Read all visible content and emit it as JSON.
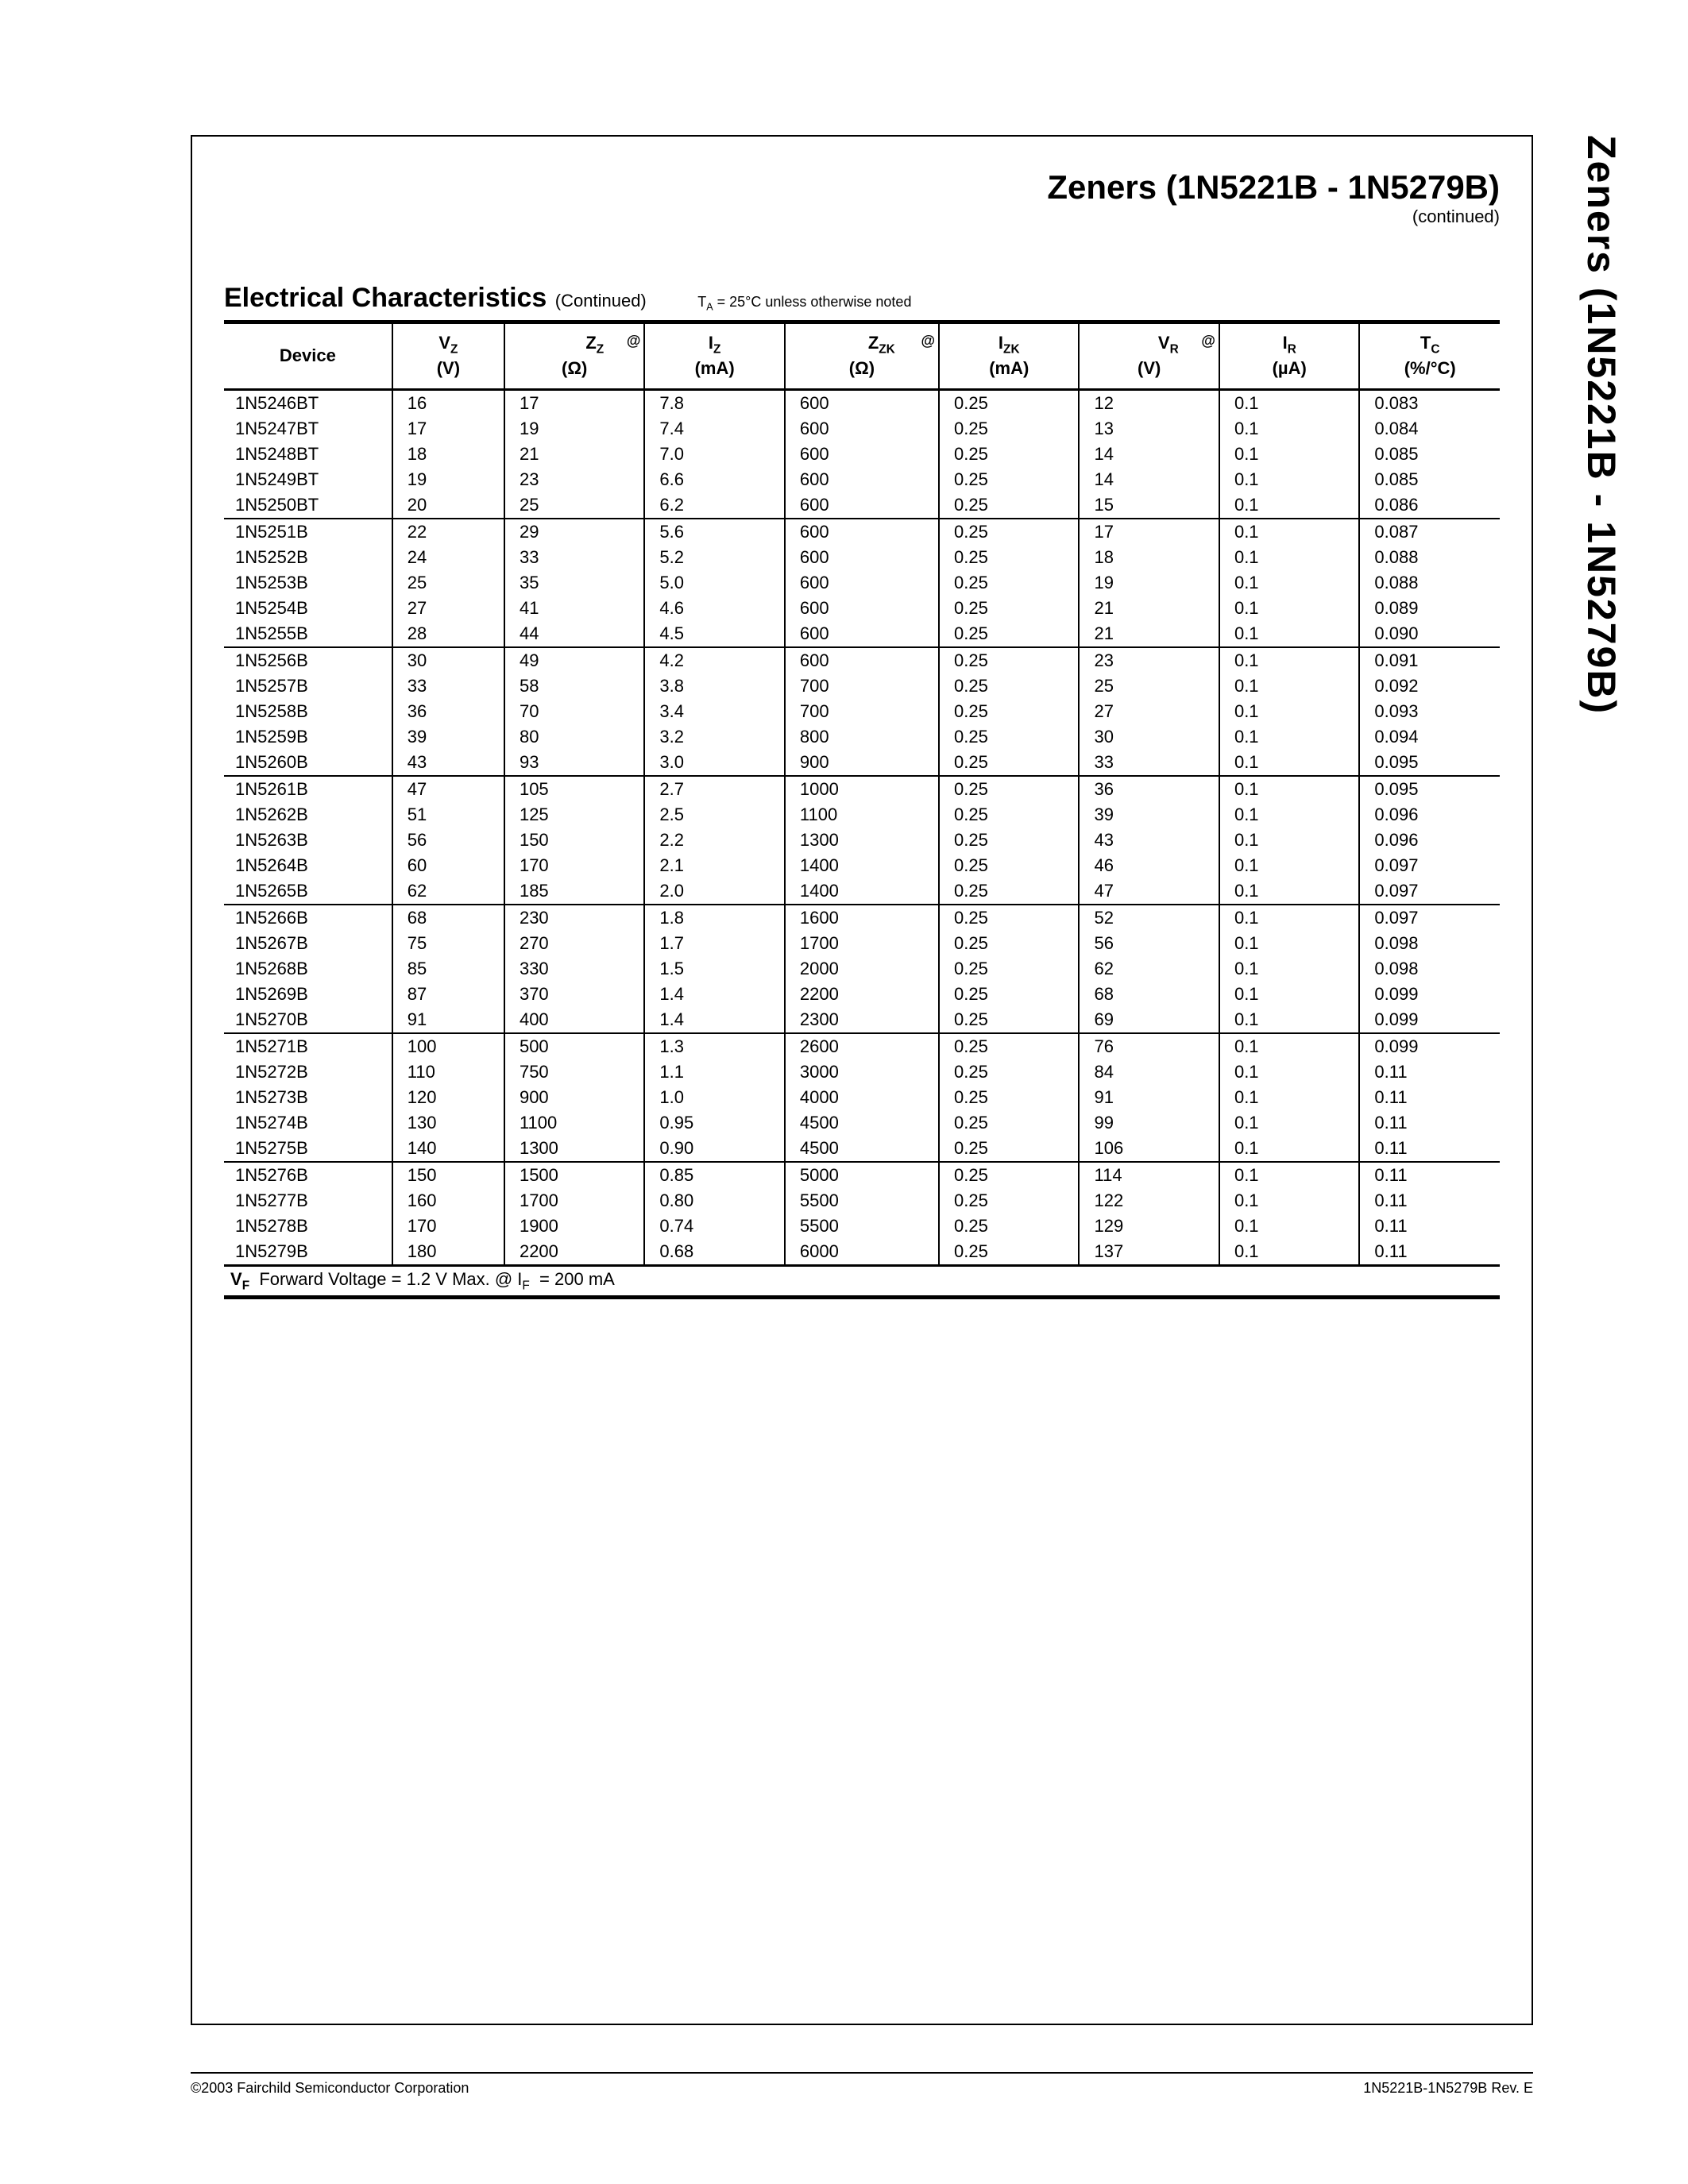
{
  "sideTitle": "Zeners (1N5221B - 1N5279B)",
  "header": {
    "title": "Zeners (1N5221B - 1N5279B)",
    "continued": "(continued)"
  },
  "section": {
    "title": "Electrical Characteristics",
    "continued": "(Continued)",
    "condition": "Tᴀ = 25°C unless otherwise noted"
  },
  "columns": [
    {
      "l1": "Device",
      "l2": ""
    },
    {
      "l1": "V_Z",
      "l2": "(V)"
    },
    {
      "l1": "Z_Z",
      "l2": "(Ω)",
      "at": true
    },
    {
      "l1": "I_Z",
      "l2": "(mA)"
    },
    {
      "l1": "Z_ZK",
      "l2": "(Ω)",
      "at": true
    },
    {
      "l1": "I_ZK",
      "l2": "(mA)"
    },
    {
      "l1": "V_R",
      "l2": "(V)",
      "at": true
    },
    {
      "l1": "I_R",
      "l2": "(µA)"
    },
    {
      "l1": "T_C",
      "l2": "(%/°C)"
    }
  ],
  "groups": [
    [
      [
        "1N5246BT",
        "16",
        "17",
        "7.8",
        "600",
        "0.25",
        "12",
        "0.1",
        "0.083"
      ],
      [
        "1N5247BT",
        "17",
        "19",
        "7.4",
        "600",
        "0.25",
        "13",
        "0.1",
        "0.084"
      ],
      [
        "1N5248BT",
        "18",
        "21",
        "7.0",
        "600",
        "0.25",
        "14",
        "0.1",
        "0.085"
      ],
      [
        "1N5249BT",
        "19",
        "23",
        "6.6",
        "600",
        "0.25",
        "14",
        "0.1",
        "0.085"
      ],
      [
        "1N5250BT",
        "20",
        "25",
        "6.2",
        "600",
        "0.25",
        "15",
        "0.1",
        "0.086"
      ]
    ],
    [
      [
        "1N5251B",
        "22",
        "29",
        "5.6",
        "600",
        "0.25",
        "17",
        "0.1",
        "0.087"
      ],
      [
        "1N5252B",
        "24",
        "33",
        "5.2",
        "600",
        "0.25",
        "18",
        "0.1",
        "0.088"
      ],
      [
        "1N5253B",
        "25",
        "35",
        "5.0",
        "600",
        "0.25",
        "19",
        "0.1",
        "0.088"
      ],
      [
        "1N5254B",
        "27",
        "41",
        "4.6",
        "600",
        "0.25",
        "21",
        "0.1",
        "0.089"
      ],
      [
        "1N5255B",
        "28",
        "44",
        "4.5",
        "600",
        "0.25",
        "21",
        "0.1",
        "0.090"
      ]
    ],
    [
      [
        "1N5256B",
        "30",
        "49",
        "4.2",
        "600",
        "0.25",
        "23",
        "0.1",
        "0.091"
      ],
      [
        "1N5257B",
        "33",
        "58",
        "3.8",
        "700",
        "0.25",
        "25",
        "0.1",
        "0.092"
      ],
      [
        "1N5258B",
        "36",
        "70",
        "3.4",
        "700",
        "0.25",
        "27",
        "0.1",
        "0.093"
      ],
      [
        "1N5259B",
        "39",
        "80",
        "3.2",
        "800",
        "0.25",
        "30",
        "0.1",
        "0.094"
      ],
      [
        "1N5260B",
        "43",
        "93",
        "3.0",
        "900",
        "0.25",
        "33",
        "0.1",
        "0.095"
      ]
    ],
    [
      [
        "1N5261B",
        "47",
        "105",
        "2.7",
        "1000",
        "0.25",
        "36",
        "0.1",
        "0.095"
      ],
      [
        "1N5262B",
        "51",
        "125",
        "2.5",
        "1100",
        "0.25",
        "39",
        "0.1",
        "0.096"
      ],
      [
        "1N5263B",
        "56",
        "150",
        "2.2",
        "1300",
        "0.25",
        "43",
        "0.1",
        "0.096"
      ],
      [
        "1N5264B",
        "60",
        "170",
        "2.1",
        "1400",
        "0.25",
        "46",
        "0.1",
        "0.097"
      ],
      [
        "1N5265B",
        "62",
        "185",
        "2.0",
        "1400",
        "0.25",
        "47",
        "0.1",
        "0.097"
      ]
    ],
    [
      [
        "1N5266B",
        "68",
        "230",
        "1.8",
        "1600",
        "0.25",
        "52",
        "0.1",
        "0.097"
      ],
      [
        "1N5267B",
        "75",
        "270",
        "1.7",
        "1700",
        "0.25",
        "56",
        "0.1",
        "0.098"
      ],
      [
        "1N5268B",
        "85",
        "330",
        "1.5",
        "2000",
        "0.25",
        "62",
        "0.1",
        "0.098"
      ],
      [
        "1N5269B",
        "87",
        "370",
        "1.4",
        "2200",
        "0.25",
        "68",
        "0.1",
        "0.099"
      ],
      [
        "1N5270B",
        "91",
        "400",
        "1.4",
        "2300",
        "0.25",
        "69",
        "0.1",
        "0.099"
      ]
    ],
    [
      [
        "1N5271B",
        "100",
        "500",
        "1.3",
        "2600",
        "0.25",
        "76",
        "0.1",
        "0.099"
      ],
      [
        "1N5272B",
        "110",
        "750",
        "1.1",
        "3000",
        "0.25",
        "84",
        "0.1",
        "0.11"
      ],
      [
        "1N5273B",
        "120",
        "900",
        "1.0",
        "4000",
        "0.25",
        "91",
        "0.1",
        "0.11"
      ],
      [
        "1N5274B",
        "130",
        "1100",
        "0.95",
        "4500",
        "0.25",
        "99",
        "0.1",
        "0.11"
      ],
      [
        "1N5275B",
        "140",
        "1300",
        "0.90",
        "4500",
        "0.25",
        "106",
        "0.1",
        "0.11"
      ]
    ],
    [
      [
        "1N5276B",
        "150",
        "1500",
        "0.85",
        "5000",
        "0.25",
        "114",
        "0.1",
        "0.11"
      ],
      [
        "1N5277B",
        "160",
        "1700",
        "0.80",
        "5500",
        "0.25",
        "122",
        "0.1",
        "0.11"
      ],
      [
        "1N5278B",
        "170",
        "1900",
        "0.74",
        "5500",
        "0.25",
        "129",
        "0.1",
        "0.11"
      ],
      [
        "1N5279B",
        "180",
        "2200",
        "0.68",
        "6000",
        "0.25",
        "137",
        "0.1",
        "0.11"
      ]
    ]
  ],
  "footnote": {
    "vfLabel": "V_F",
    "text": "  Forward Voltage = 1.2 V Max. @ I_F  = 200 mA"
  },
  "footer": {
    "left": "©2003 Fairchild Semiconductor Corporation",
    "right": "1N5221B-1N5279B Rev. E"
  }
}
